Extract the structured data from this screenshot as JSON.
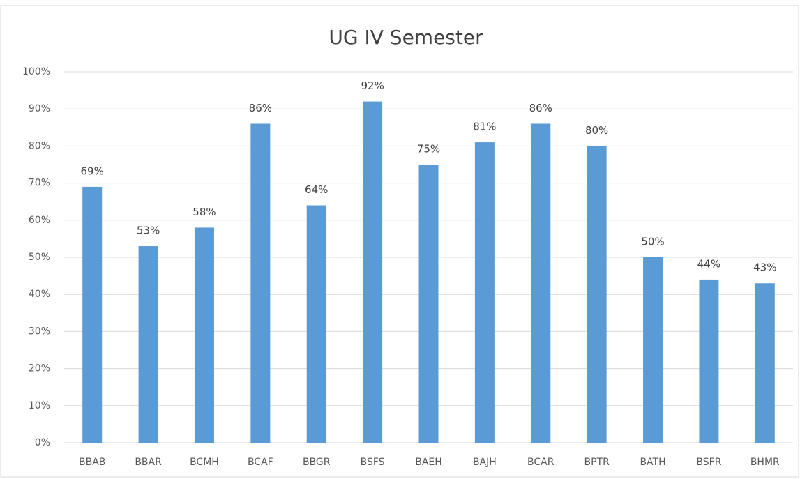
{
  "chart_data": {
    "type": "bar",
    "title": "UG IV Semester",
    "categories": [
      "BBAB",
      "BBAR",
      "BCMH",
      "BCAF",
      "BBGR",
      "BSFS",
      "BAEH",
      "BAJH",
      "BCAR",
      "BPTR",
      "BATH",
      "BSFR",
      "BHMR"
    ],
    "values": [
      69,
      53,
      58,
      86,
      64,
      92,
      75,
      81,
      86,
      80,
      50,
      44,
      43
    ],
    "value_labels": [
      "69%",
      "53%",
      "58%",
      "86%",
      "64%",
      "92%",
      "75%",
      "81%",
      "86%",
      "80%",
      "50%",
      "44%",
      "43%"
    ],
    "color": "#5b9bd5",
    "ylim": [
      0,
      100
    ],
    "yticks": [
      {
        "value": 0,
        "label": "0%"
      },
      {
        "value": 10,
        "label": "10%"
      },
      {
        "value": 20,
        "label": "20%"
      },
      {
        "value": 30,
        "label": "30%"
      },
      {
        "value": 40,
        "label": "40%"
      },
      {
        "value": 50,
        "label": "50%"
      },
      {
        "value": 60,
        "label": "60%"
      },
      {
        "value": 70,
        "label": "70%"
      },
      {
        "value": 80,
        "label": "80%"
      },
      {
        "value": 90,
        "label": "90%"
      },
      {
        "value": 100,
        "label": "100%"
      }
    ],
    "grid": true
  }
}
